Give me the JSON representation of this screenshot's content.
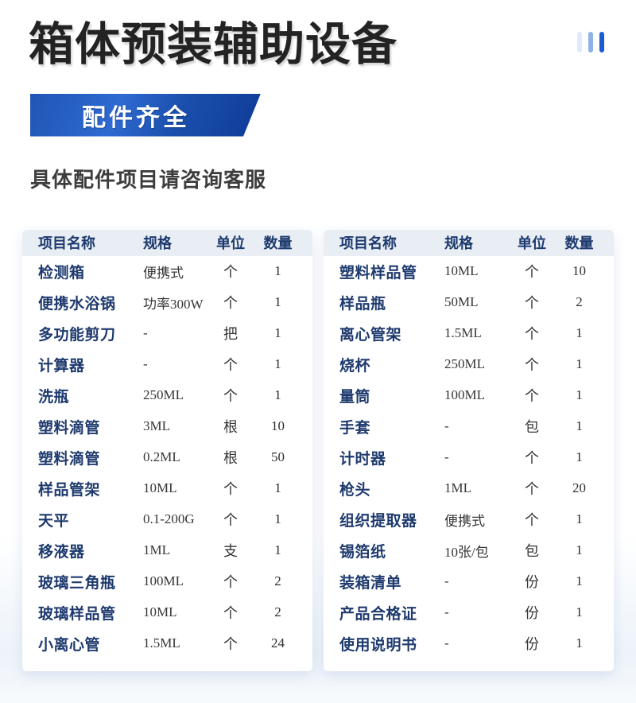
{
  "page": {
    "title": "箱体预装辅助设备",
    "badge_label": "配件齐全",
    "subtitle": "具体配件项目请咨询客服"
  },
  "decor": {
    "bar_colors": [
      "#dfeafc",
      "#8fb2e6",
      "#1a5bd2"
    ]
  },
  "colors": {
    "badge_gradient_start": "#2e6ad1",
    "badge_gradient_end": "#0d3b97",
    "table_header_bg": "#e9edf4",
    "item_name_text": "#1e3a6e",
    "value_text": "#363636"
  },
  "columns": [
    "项目名称",
    "规格",
    "单位",
    "数量"
  ],
  "tables": [
    {
      "rows": [
        [
          "检测箱",
          "便携式",
          "个",
          "1"
        ],
        [
          "便携水浴锅",
          "功率300W",
          "个",
          "1"
        ],
        [
          "多功能剪刀",
          "-",
          "把",
          "1"
        ],
        [
          "计算器",
          "-",
          "个",
          "1"
        ],
        [
          "洗瓶",
          "250ML",
          "个",
          "1"
        ],
        [
          "塑料滴管",
          "3ML",
          "根",
          "10"
        ],
        [
          "塑料滴管",
          "0.2ML",
          "根",
          "50"
        ],
        [
          "样品管架",
          "10ML",
          "个",
          "1"
        ],
        [
          "天平",
          "0.1-200G",
          "个",
          "1"
        ],
        [
          "移液器",
          "1ML",
          "支",
          "1"
        ],
        [
          "玻璃三角瓶",
          "100ML",
          "个",
          "2"
        ],
        [
          "玻璃样品管",
          "10ML",
          "个",
          "2"
        ],
        [
          "小离心管",
          "1.5ML",
          "个",
          "24"
        ]
      ]
    },
    {
      "rows": [
        [
          "塑料样品管",
          "10ML",
          "个",
          "10"
        ],
        [
          "样品瓶",
          "50ML",
          "个",
          "2"
        ],
        [
          "离心管架",
          "1.5ML",
          "个",
          "1"
        ],
        [
          "烧杯",
          "250ML",
          "个",
          "1"
        ],
        [
          "量筒",
          "100ML",
          "个",
          "1"
        ],
        [
          "手套",
          "-",
          "包",
          "1"
        ],
        [
          "计时器",
          "-",
          "个",
          "1"
        ],
        [
          "枪头",
          "1ML",
          "个",
          "20"
        ],
        [
          "组织提取器",
          "便携式",
          "个",
          "1"
        ],
        [
          "锡箔纸",
          "10张/包",
          "包",
          "1"
        ],
        [
          "装箱清单",
          "-",
          "份",
          "1"
        ],
        [
          "产品合格证",
          "-",
          "份",
          "1"
        ],
        [
          "使用说明书",
          "-",
          "份",
          "1"
        ]
      ]
    }
  ]
}
